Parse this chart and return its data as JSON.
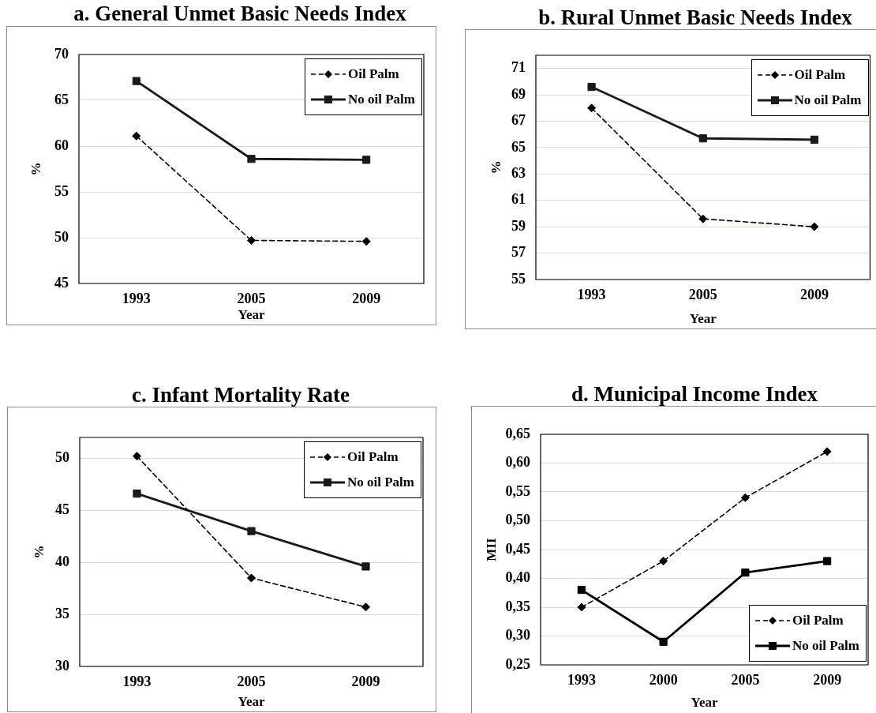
{
  "chart_data": [
    {
      "type": "line",
      "title": "a. General Unmet Basic Needs Index",
      "xlabel": "Year",
      "ylabel": "%",
      "categories": [
        "1993",
        "2005",
        "2009"
      ],
      "series": [
        {
          "name": "Oil Palm",
          "color": "#000000",
          "marker": "diamond",
          "line_style": "dashed",
          "values": [
            61.1,
            49.7,
            49.6
          ]
        },
        {
          "name": "No oil Palm",
          "color": "#1a1a1a",
          "marker": "square",
          "line_style": "solid",
          "values": [
            67.1,
            58.6,
            58.5
          ]
        }
      ],
      "ylim": [
        45,
        70
      ],
      "yticks": [
        45,
        50,
        55,
        60,
        65,
        70
      ],
      "grid": "y",
      "legend": "top right"
    },
    {
      "type": "line",
      "title": "b. Rural Unmet Basic Needs Index",
      "xlabel": "Year",
      "ylabel": "%",
      "categories": [
        "1993",
        "2005",
        "2009"
      ],
      "series": [
        {
          "name": "Oil Palm",
          "color": "#000000",
          "marker": "diamond",
          "line_style": "dashed",
          "values": [
            68.0,
            59.6,
            59.0
          ]
        },
        {
          "name": "No oil Palm",
          "color": "#1a1a1a",
          "marker": "square",
          "line_style": "solid",
          "values": [
            69.6,
            65.7,
            65.6
          ]
        }
      ],
      "ylim": [
        55,
        72
      ],
      "yticks": [
        55,
        57,
        59,
        61,
        63,
        65,
        67,
        69,
        71
      ],
      "grid": "y",
      "legend": "top right"
    },
    {
      "type": "line",
      "title": "c. Infant Mortality Rate",
      "xlabel": "Year",
      "ylabel": "%",
      "categories": [
        "1993",
        "2005",
        "2009"
      ],
      "series": [
        {
          "name": "Oil Palm",
          "color": "#000000",
          "marker": "diamond",
          "line_style": "dashed",
          "values": [
            50.2,
            38.5,
            35.7
          ]
        },
        {
          "name": "No oil Palm",
          "color": "#1a1a1a",
          "marker": "square",
          "line_style": "solid",
          "values": [
            46.6,
            43.0,
            39.6
          ]
        }
      ],
      "ylim": [
        30,
        52
      ],
      "yticks": [
        30,
        35,
        40,
        45,
        50
      ],
      "grid": "y",
      "legend": "top right"
    },
    {
      "type": "line",
      "title": "d. Municipal Income Index",
      "xlabel": "Year",
      "ylabel": "MII",
      "categories": [
        "1993",
        "2000",
        "2005",
        "2009"
      ],
      "series": [
        {
          "name": "Oil Palm",
          "color": "#000000",
          "marker": "diamond",
          "line_style": "dashed",
          "values": [
            0.35,
            0.43,
            0.54,
            0.62
          ]
        },
        {
          "name": "No oil Palm",
          "color": "#000000",
          "marker": "square",
          "line_style": "solid",
          "values": [
            0.38,
            0.29,
            0.41,
            0.43
          ]
        }
      ],
      "ylim": [
        0.25,
        0.65
      ],
      "yticks": [
        {
          "value": 0.25,
          "label": "0,25"
        },
        {
          "value": 0.3,
          "label": "0,30"
        },
        {
          "value": 0.35,
          "label": "0,35"
        },
        {
          "value": 0.4,
          "label": "0,40"
        },
        {
          "value": 0.45,
          "label": "0,45"
        },
        {
          "value": 0.5,
          "label": "0,50"
        },
        {
          "value": 0.55,
          "label": "0,55"
        },
        {
          "value": 0.6,
          "label": "0,60"
        },
        {
          "value": 0.65,
          "label": "0,65"
        }
      ],
      "grid": "y",
      "legend": "bottom right"
    }
  ]
}
